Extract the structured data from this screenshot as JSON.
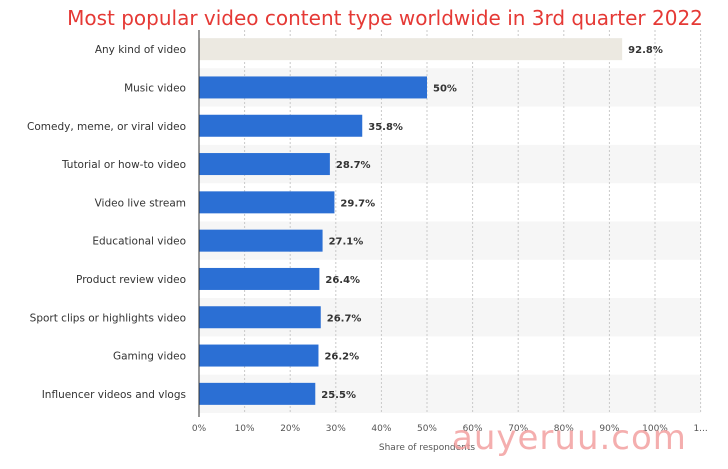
{
  "chart_data": {
    "type": "bar",
    "orientation": "horizontal",
    "title": "Most popular video content type worldwide in 3rd quarter 2022",
    "xlabel": "Share of respondents",
    "ylabel": "",
    "xlim": [
      0,
      110
    ],
    "x_ticks": [
      "0%",
      "10%",
      "20%",
      "30%",
      "40%",
      "50%",
      "60%",
      "70%",
      "80%",
      "90%",
      "100%",
      "1..."
    ],
    "categories": [
      "Any kind of video",
      "Music video",
      "Comedy, meme, or viral video",
      "Tutorial or how-to video",
      "Video live stream",
      "Educational video",
      "Product review video",
      "Sport clips or highlights video",
      "Gaming video",
      "Influencer videos and vlogs"
    ],
    "values": [
      92.8,
      50,
      35.8,
      28.7,
      29.7,
      27.1,
      26.4,
      26.7,
      26.2,
      25.5
    ],
    "value_labels": [
      "92.8%",
      "50%",
      "35.8%",
      "28.7%",
      "29.7%",
      "27.1%",
      "26.4%",
      "26.7%",
      "26.2%",
      "25.5%"
    ],
    "colors": {
      "highlight": "#ece9e1",
      "bar": "#2b6fd4",
      "title": "#e53935",
      "band": "#f6f6f6",
      "grid": "#c9c9c9"
    },
    "grid": true,
    "legend": "none"
  },
  "watermark": "auyeruu.com"
}
